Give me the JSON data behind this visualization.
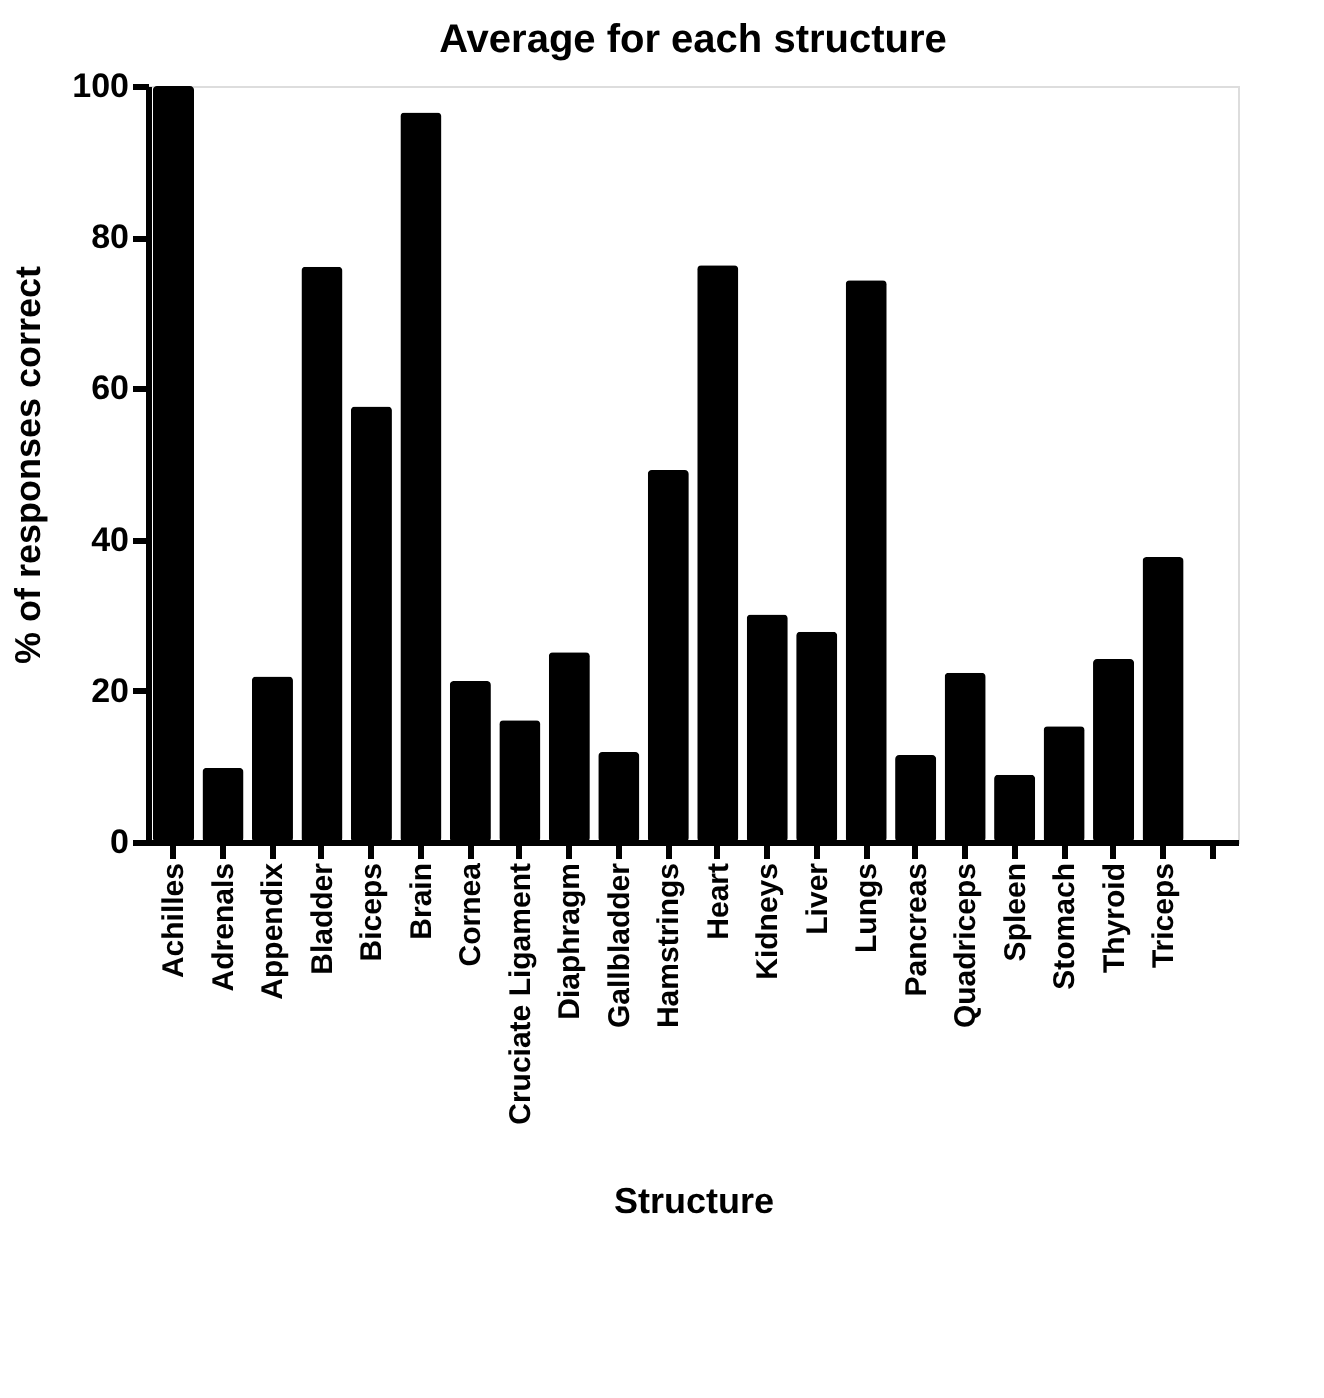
{
  "chart_data": {
    "type": "bar",
    "title": "Average for each structure",
    "xlabel": "Structure",
    "ylabel": "% of responses correct",
    "categories": [
      "Achilles",
      "Adrenals",
      "Appendix",
      "Bladder",
      "Biceps",
      "Brain",
      "Cornea",
      "Cruciate Ligament",
      "Diaphragm",
      "Gallbladder",
      "Hamstrings",
      "Heart",
      "Kidneys",
      "Liver",
      "Lungs",
      "Pancreas",
      "Quadriceps",
      "Spleen",
      "Stomach",
      "Thyroid",
      "Triceps",
      null
    ],
    "values": [
      100,
      9.8,
      21.9,
      76.1,
      57.6,
      96.5,
      21.3,
      16.1,
      25.1,
      11.9,
      49.2,
      76.3,
      30.1,
      27.8,
      74.3,
      11.5,
      22.4,
      8.9,
      15.3,
      24.2,
      37.7,
      null
    ],
    "color": "#000000",
    "ylim": [
      0,
      100
    ],
    "yticks": [
      0,
      20,
      40,
      60,
      80,
      100
    ],
    "grid": false
  }
}
